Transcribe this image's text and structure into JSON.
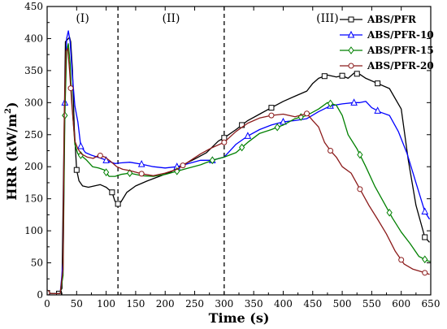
{
  "chart_data": {
    "type": "line",
    "xlabel": "Time (s)",
    "ylabel": "HRR (kW/m",
    "ylabel_superscript": "2",
    "ylabel_suffix": ")",
    "xlim": [
      0,
      650
    ],
    "ylim": [
      0,
      450
    ],
    "x_ticks": [
      0,
      50,
      100,
      150,
      200,
      250,
      300,
      350,
      400,
      450,
      500,
      550,
      600,
      650
    ],
    "y_ticks": [
      0,
      50,
      100,
      150,
      200,
      250,
      300,
      350,
      400,
      450
    ],
    "grid": false,
    "legend_position": "top-right",
    "regions": [
      {
        "label": "(I)",
        "x_start": 0,
        "x_end": 120
      },
      {
        "label": "(II)",
        "x_start": 120,
        "x_end": 300
      },
      {
        "label": "(III)",
        "x_start": 300,
        "x_end": 650
      }
    ],
    "dividers": [
      120,
      300
    ],
    "series": [
      {
        "name": "ABS/PFR",
        "color": "#000000",
        "marker": "square",
        "points": [
          [
            0,
            3
          ],
          [
            10,
            2
          ],
          [
            20,
            2
          ],
          [
            25,
            10
          ],
          [
            28,
            200
          ],
          [
            31,
            395
          ],
          [
            34,
            398
          ],
          [
            38,
            402
          ],
          [
            40,
            395
          ],
          [
            43,
            350
          ],
          [
            46,
            260
          ],
          [
            50,
            195
          ],
          [
            54,
            178
          ],
          [
            60,
            170
          ],
          [
            70,
            168
          ],
          [
            80,
            170
          ],
          [
            90,
            172
          ],
          [
            100,
            168
          ],
          [
            110,
            160
          ],
          [
            115,
            146
          ],
          [
            120,
            142
          ],
          [
            125,
            145
          ],
          [
            135,
            160
          ],
          [
            150,
            170
          ],
          [
            170,
            178
          ],
          [
            190,
            185
          ],
          [
            210,
            192
          ],
          [
            230,
            203
          ],
          [
            250,
            212
          ],
          [
            270,
            222
          ],
          [
            290,
            240
          ],
          [
            300,
            245
          ],
          [
            320,
            258
          ],
          [
            340,
            272
          ],
          [
            360,
            282
          ],
          [
            380,
            292
          ],
          [
            400,
            302
          ],
          [
            420,
            310
          ],
          [
            440,
            318
          ],
          [
            450,
            330
          ],
          [
            460,
            338
          ],
          [
            475,
            343
          ],
          [
            490,
            340
          ],
          [
            500,
            342
          ],
          [
            510,
            338
          ],
          [
            520,
            346
          ],
          [
            530,
            344
          ],
          [
            540,
            338
          ],
          [
            560,
            330
          ],
          [
            580,
            322
          ],
          [
            600,
            290
          ],
          [
            612,
            210
          ],
          [
            625,
            140
          ],
          [
            640,
            90
          ],
          [
            648,
            82
          ]
        ],
        "marker_x": [
          0,
          20,
          50,
          110,
          120,
          300,
          330,
          380,
          470,
          500,
          525,
          560,
          640
        ]
      },
      {
        "name": "ABS/PFR-10",
        "color": "#0000ff",
        "marker": "triangle",
        "points": [
          [
            0,
            3
          ],
          [
            10,
            2
          ],
          [
            22,
            2
          ],
          [
            27,
            50
          ],
          [
            30,
            300
          ],
          [
            33,
            400
          ],
          [
            36,
            412
          ],
          [
            39,
            395
          ],
          [
            43,
            340
          ],
          [
            47,
            295
          ],
          [
            52,
            270
          ],
          [
            57,
            232
          ],
          [
            65,
            222
          ],
          [
            75,
            218
          ],
          [
            85,
            215
          ],
          [
            95,
            212
          ],
          [
            105,
            208
          ],
          [
            115,
            205
          ],
          [
            125,
            206
          ],
          [
            140,
            207
          ],
          [
            160,
            204
          ],
          [
            180,
            200
          ],
          [
            200,
            198
          ],
          [
            220,
            200
          ],
          [
            240,
            205
          ],
          [
            260,
            210
          ],
          [
            280,
            210
          ],
          [
            300,
            215
          ],
          [
            320,
            235
          ],
          [
            340,
            248
          ],
          [
            360,
            258
          ],
          [
            380,
            265
          ],
          [
            400,
            270
          ],
          [
            420,
            272
          ],
          [
            440,
            275
          ],
          [
            460,
            286
          ],
          [
            480,
            295
          ],
          [
            500,
            298
          ],
          [
            520,
            300
          ],
          [
            530,
            300
          ],
          [
            540,
            302
          ],
          [
            550,
            292
          ],
          [
            565,
            285
          ],
          [
            580,
            280
          ],
          [
            595,
            255
          ],
          [
            610,
            220
          ],
          [
            625,
            175
          ],
          [
            640,
            130
          ],
          [
            648,
            118
          ]
        ],
        "marker_x": [
          0,
          30,
          57,
          100,
          160,
          220,
          280,
          340,
          400,
          480,
          520,
          560,
          640
        ]
      },
      {
        "name": "ABS/PFR-15",
        "color": "#008000",
        "marker": "diamond",
        "points": [
          [
            0,
            3
          ],
          [
            10,
            2
          ],
          [
            22,
            2
          ],
          [
            27,
            30
          ],
          [
            30,
            280
          ],
          [
            33,
            380
          ],
          [
            36,
            392
          ],
          [
            39,
            360
          ],
          [
            42,
            300
          ],
          [
            47,
            235
          ],
          [
            52,
            220
          ],
          [
            57,
            218
          ],
          [
            67,
            210
          ],
          [
            77,
            200
          ],
          [
            87,
            198
          ],
          [
            97,
            195
          ],
          [
            105,
            185
          ],
          [
            115,
            185
          ],
          [
            125,
            188
          ],
          [
            140,
            190
          ],
          [
            160,
            186
          ],
          [
            180,
            185
          ],
          [
            200,
            188
          ],
          [
            220,
            193
          ],
          [
            240,
            198
          ],
          [
            260,
            203
          ],
          [
            280,
            210
          ],
          [
            300,
            215
          ],
          [
            320,
            222
          ],
          [
            340,
            238
          ],
          [
            360,
            252
          ],
          [
            380,
            258
          ],
          [
            400,
            265
          ],
          [
            420,
            275
          ],
          [
            440,
            280
          ],
          [
            460,
            290
          ],
          [
            475,
            300
          ],
          [
            490,
            296
          ],
          [
            500,
            280
          ],
          [
            510,
            250
          ],
          [
            525,
            228
          ],
          [
            540,
            200
          ],
          [
            555,
            170
          ],
          [
            570,
            145
          ],
          [
            585,
            120
          ],
          [
            600,
            98
          ],
          [
            615,
            80
          ],
          [
            630,
            60
          ],
          [
            645,
            53
          ],
          [
            650,
            52
          ]
        ],
        "marker_x": [
          0,
          30,
          57,
          100,
          140,
          220,
          280,
          330,
          390,
          430,
          480,
          530,
          580,
          640
        ]
      },
      {
        "name": "ABS/PFR-20",
        "color": "#8b1a1a",
        "marker": "circle",
        "points": [
          [
            0,
            3
          ],
          [
            10,
            2
          ],
          [
            22,
            2
          ],
          [
            27,
            40
          ],
          [
            29,
            280
          ],
          [
            32,
            380
          ],
          [
            35,
            385
          ],
          [
            38,
            350
          ],
          [
            42,
            295
          ],
          [
            47,
            240
          ],
          [
            52,
            228
          ],
          [
            58,
            220
          ],
          [
            68,
            215
          ],
          [
            78,
            213
          ],
          [
            88,
            218
          ],
          [
            98,
            215
          ],
          [
            108,
            208
          ],
          [
            118,
            200
          ],
          [
            128,
            196
          ],
          [
            140,
            194
          ],
          [
            160,
            189
          ],
          [
            180,
            186
          ],
          [
            200,
            190
          ],
          [
            220,
            196
          ],
          [
            240,
            208
          ],
          [
            260,
            220
          ],
          [
            280,
            230
          ],
          [
            300,
            238
          ],
          [
            320,
            255
          ],
          [
            340,
            268
          ],
          [
            360,
            276
          ],
          [
            380,
            280
          ],
          [
            400,
            282
          ],
          [
            420,
            278
          ],
          [
            440,
            283
          ],
          [
            450,
            272
          ],
          [
            460,
            262
          ],
          [
            470,
            238
          ],
          [
            480,
            225
          ],
          [
            490,
            215
          ],
          [
            500,
            200
          ],
          [
            515,
            190
          ],
          [
            530,
            165
          ],
          [
            545,
            140
          ],
          [
            560,
            118
          ],
          [
            575,
            95
          ],
          [
            590,
            68
          ],
          [
            605,
            48
          ],
          [
            620,
            40
          ],
          [
            635,
            36
          ],
          [
            648,
            32
          ]
        ],
        "marker_x": [
          0,
          40,
          90,
          160,
          230,
          300,
          380,
          440,
          480,
          530,
          600,
          640
        ]
      }
    ]
  }
}
